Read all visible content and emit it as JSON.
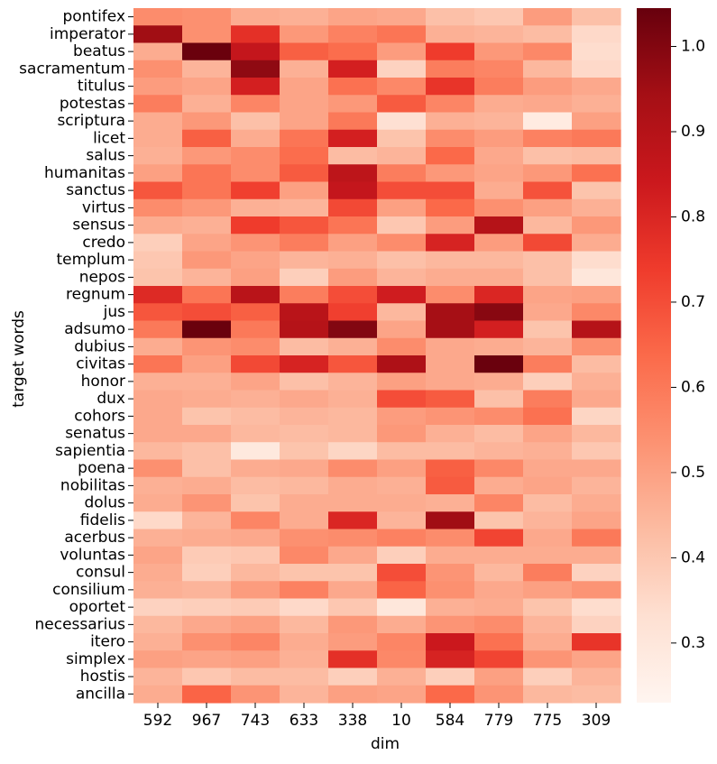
{
  "chart_data": {
    "type": "heatmap",
    "title": "",
    "xlabel": "dim",
    "ylabel": "target words",
    "x_categories": [
      "592",
      "967",
      "743",
      "633",
      "338",
      "10",
      "584",
      "779",
      "775",
      "309"
    ],
    "y_categories": [
      "pontifex",
      "imperator",
      "beatus",
      "sacramentum",
      "titulus",
      "potestas",
      "scriptura",
      "licet",
      "salus",
      "humanitas",
      "sanctus",
      "virtus",
      "sensus",
      "credo",
      "templum",
      "nepos",
      "regnum",
      "jus",
      "adsumo",
      "dubius",
      "civitas",
      "honor",
      "dux",
      "cohors",
      "senatus",
      "sapientia",
      "poena",
      "nobilitas",
      "dolus",
      "fidelis",
      "acerbus",
      "voluntas",
      "consul",
      "consilium",
      "oportet",
      "necessarius",
      "itero",
      "simplex",
      "hostis",
      "ancilla"
    ],
    "values": [
      [
        0.55,
        0.54,
        0.47,
        0.46,
        0.49,
        0.48,
        0.42,
        0.4,
        0.51,
        0.42
      ],
      [
        0.95,
        0.54,
        0.77,
        0.52,
        0.58,
        0.61,
        0.46,
        0.45,
        0.43,
        0.35
      ],
      [
        0.47,
        1.04,
        0.86,
        0.66,
        0.63,
        0.51,
        0.74,
        0.52,
        0.56,
        0.34
      ],
      [
        0.54,
        0.45,
        0.98,
        0.46,
        0.82,
        0.37,
        0.59,
        0.57,
        0.44,
        0.35
      ],
      [
        0.51,
        0.49,
        0.82,
        0.49,
        0.62,
        0.56,
        0.76,
        0.59,
        0.51,
        0.48
      ],
      [
        0.59,
        0.46,
        0.57,
        0.49,
        0.52,
        0.67,
        0.57,
        0.47,
        0.48,
        0.46
      ],
      [
        0.47,
        0.52,
        0.42,
        0.49,
        0.6,
        0.33,
        0.46,
        0.45,
        0.28,
        0.5
      ],
      [
        0.47,
        0.66,
        0.47,
        0.61,
        0.82,
        0.41,
        0.55,
        0.51,
        0.58,
        0.6
      ],
      [
        0.46,
        0.52,
        0.55,
        0.63,
        0.43,
        0.45,
        0.64,
        0.48,
        0.42,
        0.43
      ],
      [
        0.5,
        0.61,
        0.55,
        0.67,
        0.88,
        0.59,
        0.52,
        0.49,
        0.52,
        0.62
      ],
      [
        0.68,
        0.61,
        0.73,
        0.5,
        0.86,
        0.7,
        0.7,
        0.47,
        0.69,
        0.41
      ],
      [
        0.55,
        0.52,
        0.46,
        0.45,
        0.71,
        0.5,
        0.64,
        0.54,
        0.5,
        0.46
      ],
      [
        0.47,
        0.46,
        0.74,
        0.68,
        0.61,
        0.4,
        0.51,
        0.9,
        0.44,
        0.52
      ],
      [
        0.38,
        0.49,
        0.53,
        0.59,
        0.5,
        0.55,
        0.81,
        0.51,
        0.71,
        0.47
      ],
      [
        0.4,
        0.52,
        0.49,
        0.45,
        0.46,
        0.42,
        0.44,
        0.44,
        0.42,
        0.34
      ],
      [
        0.41,
        0.45,
        0.5,
        0.38,
        0.51,
        0.45,
        0.47,
        0.47,
        0.42,
        0.3
      ],
      [
        0.79,
        0.61,
        0.89,
        0.59,
        0.7,
        0.83,
        0.55,
        0.8,
        0.49,
        0.5
      ],
      [
        0.68,
        0.7,
        0.66,
        0.89,
        0.73,
        0.44,
        0.94,
        0.99,
        0.48,
        0.56
      ],
      [
        0.6,
        1.04,
        0.6,
        0.9,
        1.0,
        0.49,
        0.94,
        0.82,
        0.41,
        0.9
      ],
      [
        0.47,
        0.53,
        0.55,
        0.43,
        0.46,
        0.55,
        0.48,
        0.47,
        0.45,
        0.54
      ],
      [
        0.61,
        0.5,
        0.71,
        0.81,
        0.68,
        0.92,
        0.48,
        1.04,
        0.59,
        0.43
      ],
      [
        0.46,
        0.46,
        0.49,
        0.42,
        0.45,
        0.5,
        0.48,
        0.47,
        0.38,
        0.46
      ],
      [
        0.48,
        0.47,
        0.46,
        0.48,
        0.46,
        0.7,
        0.67,
        0.42,
        0.59,
        0.48
      ],
      [
        0.48,
        0.41,
        0.43,
        0.45,
        0.44,
        0.51,
        0.53,
        0.55,
        0.62,
        0.36
      ],
      [
        0.48,
        0.48,
        0.44,
        0.43,
        0.44,
        0.52,
        0.46,
        0.43,
        0.49,
        0.44
      ],
      [
        0.44,
        0.42,
        0.29,
        0.41,
        0.36,
        0.43,
        0.43,
        0.45,
        0.46,
        0.4
      ],
      [
        0.54,
        0.42,
        0.47,
        0.48,
        0.55,
        0.5,
        0.66,
        0.56,
        0.48,
        0.48
      ],
      [
        0.46,
        0.47,
        0.43,
        0.44,
        0.47,
        0.46,
        0.67,
        0.47,
        0.49,
        0.45
      ],
      [
        0.47,
        0.53,
        0.41,
        0.47,
        0.47,
        0.47,
        0.46,
        0.57,
        0.43,
        0.47
      ],
      [
        0.35,
        0.45,
        0.57,
        0.47,
        0.8,
        0.45,
        0.95,
        0.41,
        0.45,
        0.49
      ],
      [
        0.46,
        0.47,
        0.48,
        0.54,
        0.55,
        0.58,
        0.55,
        0.72,
        0.48,
        0.6
      ],
      [
        0.49,
        0.39,
        0.4,
        0.56,
        0.48,
        0.38,
        0.47,
        0.47,
        0.47,
        0.47
      ],
      [
        0.47,
        0.38,
        0.44,
        0.41,
        0.41,
        0.7,
        0.53,
        0.44,
        0.59,
        0.37
      ],
      [
        0.46,
        0.45,
        0.51,
        0.58,
        0.48,
        0.65,
        0.54,
        0.48,
        0.5,
        0.53
      ],
      [
        0.37,
        0.38,
        0.39,
        0.35,
        0.4,
        0.3,
        0.46,
        0.47,
        0.41,
        0.34
      ],
      [
        0.44,
        0.48,
        0.5,
        0.44,
        0.52,
        0.47,
        0.53,
        0.55,
        0.45,
        0.37
      ],
      [
        0.46,
        0.54,
        0.57,
        0.47,
        0.51,
        0.57,
        0.84,
        0.62,
        0.47,
        0.76
      ],
      [
        0.5,
        0.49,
        0.5,
        0.46,
        0.77,
        0.56,
        0.81,
        0.72,
        0.53,
        0.49
      ],
      [
        0.45,
        0.4,
        0.43,
        0.43,
        0.38,
        0.46,
        0.38,
        0.5,
        0.38,
        0.45
      ],
      [
        0.47,
        0.65,
        0.53,
        0.45,
        0.5,
        0.49,
        0.64,
        0.53,
        0.44,
        0.43
      ]
    ],
    "colorbar": {
      "colormap": "Reds",
      "vmin": 0.23,
      "vmax": 1.045,
      "ticks": [
        0.3,
        0.4,
        0.5,
        0.6,
        0.7,
        0.8,
        0.9,
        1.0
      ],
      "tick_labels": [
        "0.3",
        "0.4",
        "0.5",
        "0.6",
        "0.7",
        "0.8",
        "0.9",
        "1.0"
      ]
    }
  }
}
